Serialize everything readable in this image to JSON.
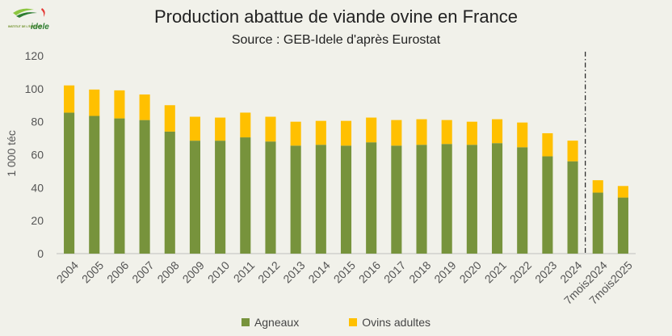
{
  "logo": {
    "line1": "INSTITUT DE L'ÉLEVAGE",
    "line2": "idele"
  },
  "chart_data": {
    "type": "bar",
    "stacked": true,
    "title": "Production abattue de viande ovine en France",
    "subtitle": "Source : GEB-Idele d'après Eurostat",
    "ylabel": "1 000 téc",
    "xlabel": "",
    "ylim": [
      0,
      120
    ],
    "yticks": [
      0,
      20,
      40,
      60,
      80,
      100,
      120
    ],
    "categories": [
      "2004",
      "2005",
      "2006",
      "2007",
      "2008",
      "2009",
      "2010",
      "2011",
      "2012",
      "2013",
      "2014",
      "2015",
      "2016",
      "2017",
      "2018",
      "2019",
      "2020",
      "2021",
      "2022",
      "2023",
      "2024",
      "7mois2024",
      "7mois2025"
    ],
    "series": [
      {
        "name": "Agneaux",
        "color": "#77933c",
        "values": [
          85.5,
          83.5,
          82,
          81,
          74,
          68.5,
          68.5,
          70.5,
          68,
          65.5,
          66,
          65.5,
          67.5,
          65.5,
          66,
          66.5,
          66,
          67,
          64.5,
          59,
          56,
          37,
          34
        ]
      },
      {
        "name": "Ovins adultes",
        "color": "#ffc000",
        "values": [
          16.5,
          16,
          17,
          15.5,
          16,
          14.5,
          14,
          15,
          15,
          14.5,
          14.5,
          15,
          15,
          15.5,
          15.5,
          14.5,
          14,
          14.5,
          15,
          14,
          12.5,
          7.5,
          7
        ]
      }
    ],
    "grid": false,
    "separator_after": "2024",
    "legend_position": "bottom"
  }
}
